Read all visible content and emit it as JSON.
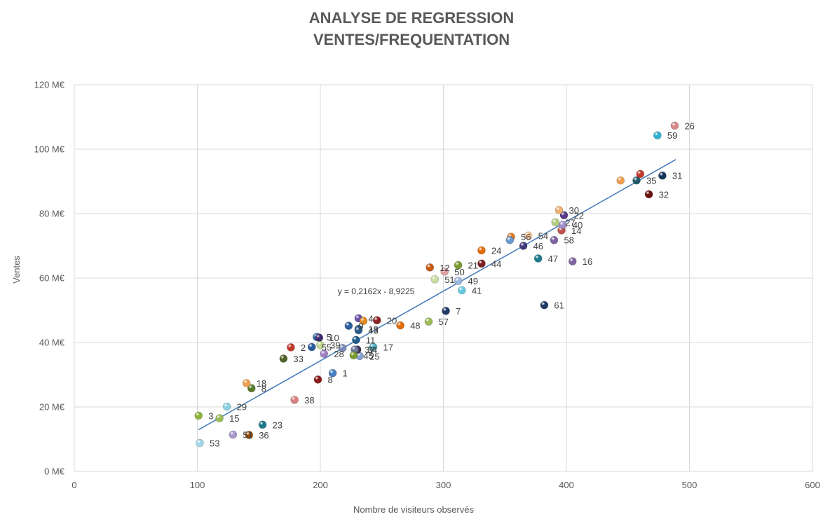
{
  "chart_data": {
    "type": "scatter",
    "title": "ANALYSE DE REGRESSION",
    "subtitle": "VENTES/FREQUENTATION",
    "xlabel": "Nombre de visiteurs observés",
    "ylabel": "Ventes",
    "xlim": [
      0,
      600
    ],
    "ylim": [
      0,
      120
    ],
    "x_ticks": [
      0,
      100,
      200,
      300,
      400,
      500,
      600
    ],
    "y_ticks": [
      0,
      20,
      40,
      60,
      80,
      100,
      120
    ],
    "y_tick_labels": [
      "0 M€",
      "20 M€",
      "40 M€",
      "60 M€",
      "80 M€",
      "100 M€",
      "120 M€"
    ],
    "grid": "vertical and horizontal",
    "trendline": {
      "slope": 0.2162,
      "intercept": -8.9225,
      "x_range": [
        101,
        489
      ],
      "color": "#4a7ebb",
      "equation": "y = 0,2162x - 8,9225",
      "equation_at": [
        214,
        55
      ]
    },
    "points": [
      {
        "label": "1",
        "x": 210,
        "y": 30.5,
        "color": "#4a7fc0"
      },
      {
        "label": "2",
        "x": 176,
        "y": 38.5,
        "color": "#c0392b"
      },
      {
        "label": "3",
        "x": 101,
        "y": 17.3,
        "color": "#8db33a"
      },
      {
        "label": "4",
        "x": 231,
        "y": 47.5,
        "color": "#6a52a8"
      },
      {
        "label": "5",
        "x": 197,
        "y": 41.7,
        "color": "#2e6ca8"
      },
      {
        "label": "7",
        "x": 302,
        "y": 49.8,
        "color": "#1f3a66"
      },
      {
        "label": "8",
        "x": 144,
        "y": 25.8,
        "color": "#5a7a2a"
      },
      {
        "label": "8",
        "x": 198,
        "y": 28.5,
        "color": "#8b1a1a"
      },
      {
        "label": "9",
        "x": 223,
        "y": 45.2,
        "color": "#2e5fa0"
      },
      {
        "label": "10",
        "x": 199,
        "y": 41.5,
        "color": "#3b2a6a"
      },
      {
        "label": "11",
        "x": 229,
        "y": 40.8,
        "color": "#1f5a8a"
      },
      {
        "label": "12",
        "x": 289,
        "y": 63.3,
        "color": "#c55a11"
      },
      {
        "label": "14",
        "x": 396,
        "y": 74.8,
        "color": "#c0504d"
      },
      {
        "label": "15",
        "x": 118,
        "y": 16.5,
        "color": "#9bbb59"
      },
      {
        "label": "16",
        "x": 405,
        "y": 65.2,
        "color": "#8064a2"
      },
      {
        "label": "17",
        "x": 243,
        "y": 38.6,
        "color": "#4bacc6"
      },
      {
        "label": "18",
        "x": 140,
        "y": 27.4,
        "color": "#f0a050"
      },
      {
        "label": "19",
        "x": 231,
        "y": 44.2,
        "color": "#1f4e79"
      },
      {
        "label": "20",
        "x": 246,
        "y": 46.9,
        "color": "#8b2323"
      },
      {
        "label": "21",
        "x": 312,
        "y": 64,
        "color": "#7a9a30"
      },
      {
        "label": "22",
        "x": 398,
        "y": 79.5,
        "color": "#5a3a8a"
      },
      {
        "label": "23",
        "x": 153,
        "y": 14.5,
        "color": "#1f7a8c"
      },
      {
        "label": "24",
        "x": 331,
        "y": 68.6,
        "color": "#e36c09"
      },
      {
        "label": "25",
        "x": 232,
        "y": 35.8,
        "color": "#8aa0d0"
      },
      {
        "label": "26",
        "x": 488,
        "y": 107.3,
        "color": "#d98888"
      },
      {
        "label": "27",
        "x": 391,
        "y": 77.3,
        "color": "#b4cc80"
      },
      {
        "label": "28",
        "x": 203,
        "y": 36.5,
        "color": "#a080c0"
      },
      {
        "label": "29",
        "x": 124,
        "y": 20.1,
        "color": "#8ad0e0"
      },
      {
        "label": "30",
        "x": 394,
        "y": 81.1,
        "color": "#f0b070"
      },
      {
        "label": "31",
        "x": 478,
        "y": 91.8,
        "color": "#17375e"
      },
      {
        "label": "32",
        "x": 467,
        "y": 86,
        "color": "#6b0f0f"
      },
      {
        "label": "33",
        "x": 170,
        "y": 35,
        "color": "#4f6228"
      },
      {
        "label": "34",
        "x": 230,
        "y": 37.8,
        "color": "#403050"
      },
      {
        "label": "35",
        "x": 457,
        "y": 90.3,
        "color": "#215968"
      },
      {
        "label": "36",
        "x": 142,
        "y": 11.3,
        "color": "#984806"
      },
      {
        "label": "37",
        "x": 228,
        "y": 37.8,
        "color": "#6a7a9a"
      },
      {
        "label": "38",
        "x": 179,
        "y": 22.2,
        "color": "#d98080"
      },
      {
        "label": "39",
        "x": 200,
        "y": 39.2,
        "color": "#c0d890"
      },
      {
        "label": "40",
        "x": 397,
        "y": 76.5,
        "color": "#a090c8"
      },
      {
        "label": "41",
        "x": 315,
        "y": 56.2,
        "color": "#6ac8e0"
      },
      {
        "label": "43",
        "x": 231,
        "y": 43.8,
        "color": "#2a5a8a"
      },
      {
        "label": "44",
        "x": 331,
        "y": 64.5,
        "color": "#7a1f1f"
      },
      {
        "label": "45",
        "x": 227,
        "y": 36,
        "color": "#7a9a30"
      },
      {
        "label": "46",
        "x": 365,
        "y": 70,
        "color": "#403878"
      },
      {
        "label": "47",
        "x": 377,
        "y": 66.1,
        "color": "#1f7a8c"
      },
      {
        "label": "48",
        "x": 265,
        "y": 45.3,
        "color": "#e36c09"
      },
      {
        "label": "49",
        "x": 312,
        "y": 59.1,
        "color": "#9ab8e0"
      },
      {
        "label": "50",
        "x": 301,
        "y": 62,
        "color": "#e0a0a0"
      },
      {
        "label": "51",
        "x": 293,
        "y": 59.6,
        "color": "#c8dca0"
      },
      {
        "label": "51",
        "x": 129,
        "y": 11.4,
        "color": "#a898c8"
      },
      {
        "label": "53",
        "x": 102,
        "y": 8.8,
        "color": "#a0d8e8"
      },
      {
        "label": "54",
        "x": 369,
        "y": 73.2,
        "color": "#f8c898"
      },
      {
        "label": "55",
        "x": 193,
        "y": 38.6,
        "color": "#2a5a9a"
      },
      {
        "label": "56",
        "x": 355,
        "y": 72.8,
        "color": "#e07820"
      },
      {
        "label": "57",
        "x": 288,
        "y": 46.5,
        "color": "#9bbb59"
      },
      {
        "label": "58",
        "x": 390,
        "y": 71.8,
        "color": "#8064a2"
      },
      {
        "label": "59",
        "x": 474,
        "y": 104.3,
        "color": "#31b0d0"
      },
      {
        "label": "61",
        "x": 382,
        "y": 51.6,
        "color": "#1f3a66"
      },
      {
        "label": "",
        "x": 444,
        "y": 90.3,
        "color": "#f0a050"
      },
      {
        "label": "",
        "x": 460,
        "y": 92.3,
        "color": "#c0392b"
      },
      {
        "label": "",
        "x": 354,
        "y": 71.8,
        "color": "#6a9ad0"
      },
      {
        "label": "",
        "x": 235,
        "y": 46.7,
        "color": "#e08a20"
      },
      {
        "label": "",
        "x": 218,
        "y": 38.3,
        "color": "#7a8ab8"
      }
    ]
  }
}
